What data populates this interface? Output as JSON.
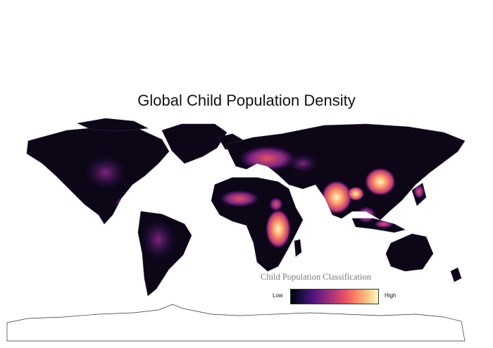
{
  "map": {
    "title": "Global Child Population Density",
    "legend": {
      "title": "Child Population Classification",
      "low_label": "Low",
      "high_label": "High",
      "gradient_colors": [
        "#000004",
        "#1d1147",
        "#51127c",
        "#832681",
        "#b73779",
        "#e75263",
        "#fc8961",
        "#fec287",
        "#fcfdbf"
      ]
    },
    "colors": {
      "land": "#0c0616",
      "boundaries": "#3a2f55",
      "background": "#ffffff",
      "antarctica_outline": "#333333"
    }
  }
}
